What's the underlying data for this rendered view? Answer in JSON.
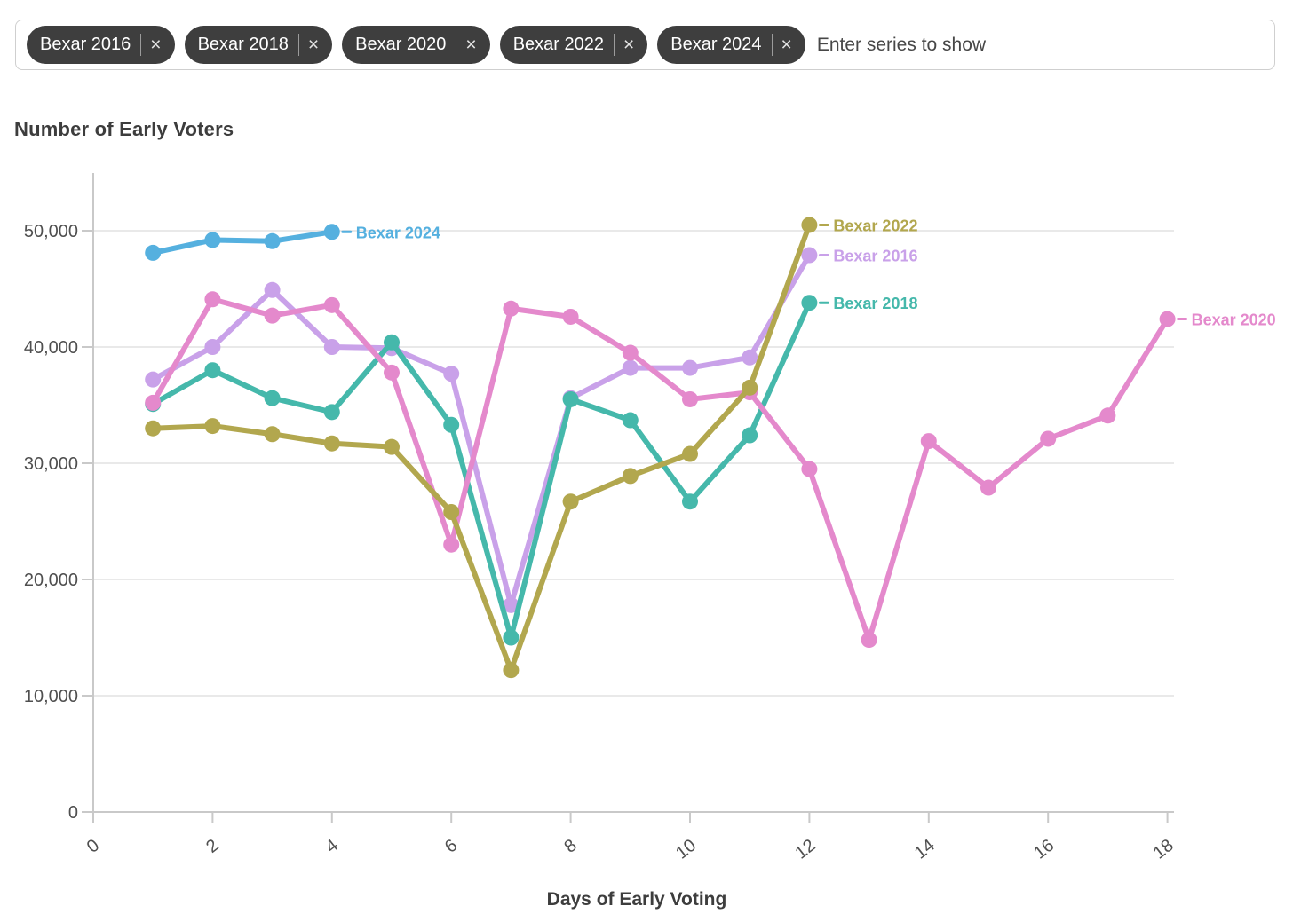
{
  "filter_bar": {
    "chips": [
      {
        "label": "Bexar 2016"
      },
      {
        "label": "Bexar 2018"
      },
      {
        "label": "Bexar 2020"
      },
      {
        "label": "Bexar 2022"
      },
      {
        "label": "Bexar 2024"
      }
    ],
    "remove_icon": "×",
    "input_placeholder": "Enter series to show"
  },
  "colors": {
    "chip_bg": "#3e3e3e",
    "chip_text": "#ffffff",
    "bar_border": "#cfcfcf",
    "grid": "#e9e9e9",
    "axis": "#c9c9c9",
    "tick_text": "#4f4f4f",
    "title_text": "#3d3d3d"
  },
  "chart_data": {
    "type": "line",
    "title": "Number of Early Voters",
    "xlabel": "Days of Early Voting",
    "ylabel": "",
    "x_ticks": [
      0,
      2,
      4,
      6,
      8,
      10,
      12,
      14,
      16,
      18
    ],
    "y_ticks": [
      0,
      10000,
      20000,
      30000,
      40000,
      50000
    ],
    "xlim": [
      0,
      19
    ],
    "ylim": [
      0,
      55000
    ],
    "grid": true,
    "legend_position": "line-end-labels",
    "marker": "circle",
    "series": [
      {
        "name": "Bexar 2016",
        "color": "#c9a1e9",
        "x": [
          1,
          2,
          3,
          4,
          5,
          6,
          7,
          8,
          9,
          10,
          11,
          12
        ],
        "values": [
          37200,
          40000,
          44900,
          40000,
          39900,
          37700,
          17800,
          35600,
          38200,
          38200,
          39100,
          47900
        ]
      },
      {
        "name": "Bexar 2018",
        "color": "#45b8ab",
        "x": [
          1,
          2,
          3,
          4,
          5,
          6,
          7,
          8,
          9,
          10,
          11,
          12
        ],
        "values": [
          35100,
          38000,
          35600,
          34400,
          40400,
          33300,
          15000,
          35500,
          33700,
          26700,
          32400,
          43800
        ]
      },
      {
        "name": "Bexar 2020",
        "color": "#e489cc",
        "x": [
          1,
          2,
          3,
          4,
          5,
          6,
          7,
          8,
          9,
          10,
          11,
          12,
          13,
          14,
          15,
          16,
          17,
          18
        ],
        "values": [
          35200,
          44100,
          42700,
          43600,
          37800,
          23000,
          43300,
          42600,
          39500,
          35500,
          36100,
          29500,
          14800,
          31900,
          27900,
          32100,
          34100,
          42400
        ]
      },
      {
        "name": "Bexar 2022",
        "color": "#b2a74e",
        "x": [
          1,
          2,
          3,
          4,
          5,
          6,
          7,
          8,
          9,
          10,
          11,
          12
        ],
        "values": [
          33000,
          33200,
          32500,
          31700,
          31400,
          25800,
          12200,
          26700,
          28900,
          30800,
          36500,
          50500
        ]
      },
      {
        "name": "Bexar 2024",
        "color": "#55b0df",
        "x": [
          1,
          2,
          3,
          4
        ],
        "values": [
          48100,
          49200,
          49100,
          49900
        ]
      }
    ]
  }
}
